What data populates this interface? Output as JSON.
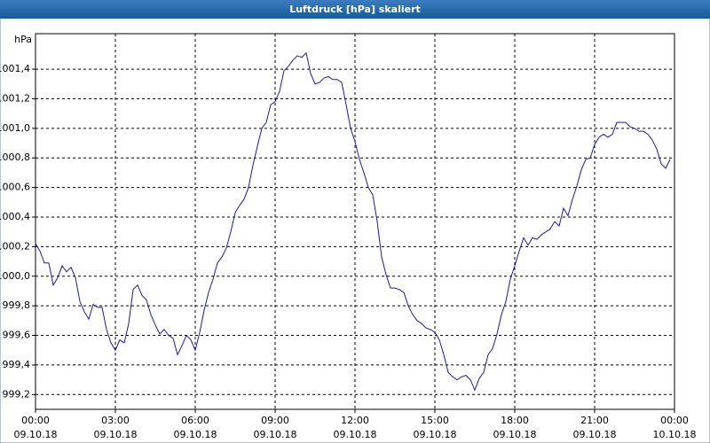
{
  "chart_data": {
    "type": "line",
    "title": "Luftdruck [hPa] skaliert",
    "y_label": "hPa",
    "x": [
      0,
      10,
      20,
      30,
      40,
      50,
      60,
      70,
      80,
      90,
      100,
      110,
      120,
      130,
      140,
      150,
      160,
      170,
      180,
      190,
      200,
      210,
      220,
      230,
      240,
      250,
      260,
      270,
      280,
      290,
      300,
      310,
      320,
      330,
      340,
      350,
      360,
      370,
      380,
      390,
      400,
      410,
      420,
      430,
      440,
      450,
      460,
      470,
      480,
      490,
      500,
      510,
      520,
      530,
      540,
      550,
      560,
      570,
      580,
      590,
      600,
      610,
      620,
      630,
      640,
      650,
      660,
      670,
      680,
      690,
      700,
      710,
      720,
      730,
      740,
      750,
      760,
      770,
      780,
      790,
      800,
      810,
      820,
      830,
      840,
      850,
      860,
      870,
      880,
      890,
      900,
      910,
      920,
      930,
      940,
      950,
      960,
      970,
      980,
      990,
      1000,
      1010,
      1020,
      1030,
      1040,
      1050,
      1060,
      1070,
      1080,
      1090,
      1100,
      1110,
      1120,
      1130,
      1140,
      1150,
      1160,
      1170,
      1180,
      1190,
      1200,
      1210,
      1220,
      1230,
      1240,
      1250,
      1260,
      1270,
      1280,
      1290,
      1300,
      1310,
      1320,
      1330,
      1340,
      1350,
      1360,
      1370,
      1380,
      1390,
      1400,
      1410,
      1420,
      1430
    ],
    "series": [
      {
        "name": "Luftdruck",
        "color": "#1a1aa6",
        "values": [
          1000.22,
          1000.17,
          1000.09,
          1000.09,
          999.94,
          999.99,
          1000.07,
          1000.03,
          1000.06,
          999.99,
          999.83,
          999.76,
          999.71,
          999.81,
          999.79,
          999.79,
          999.64,
          999.55,
          999.5,
          999.57,
          999.55,
          999.68,
          999.91,
          999.94,
          999.87,
          999.84,
          999.74,
          999.67,
          999.61,
          999.64,
          999.6,
          999.58,
          999.47,
          999.53,
          999.6,
          999.57,
          999.5,
          999.62,
          999.77,
          999.89,
          999.98,
          1000.09,
          1000.13,
          1000.19,
          1000.3,
          1000.43,
          1000.48,
          1000.52,
          1000.6,
          1000.75,
          1000.88,
          1001.0,
          1001.04,
          1001.16,
          1001.18,
          1001.25,
          1001.39,
          1001.42,
          1001.46,
          1001.49,
          1001.48,
          1001.51,
          1001.37,
          1001.3,
          1001.31,
          1001.34,
          1001.35,
          1001.33,
          1001.33,
          1001.31,
          1001.16,
          1001.0,
          1000.91,
          1000.79,
          1000.7,
          1000.6,
          1000.55,
          1000.37,
          1000.13,
          1000.01,
          999.92,
          999.92,
          999.91,
          999.89,
          999.8,
          999.74,
          999.7,
          999.68,
          999.65,
          999.64,
          999.62,
          999.57,
          999.47,
          999.35,
          999.32,
          999.3,
          999.32,
          999.33,
          999.3,
          999.23,
          999.31,
          999.35,
          999.47,
          999.51,
          999.61,
          999.74,
          999.83,
          999.98,
          1000.07,
          1000.17,
          1000.26,
          1000.21,
          1000.26,
          1000.25,
          1000.28,
          1000.3,
          1000.32,
          1000.37,
          1000.34,
          1000.46,
          1000.41,
          1000.52,
          1000.61,
          1000.72,
          1000.79,
          1000.8,
          1000.89,
          1000.94,
          1000.96,
          1000.94,
          1000.96,
          1001.04,
          1001.04,
          1001.04,
          1001.01,
          1001.0,
          1000.98,
          1000.98,
          1000.96,
          1000.92,
          1000.86,
          1000.76,
          1000.73,
          1000.79
        ]
      }
    ],
    "xlim": [
      0,
      1440
    ],
    "xticks": [
      {
        "value": 0,
        "label": "00:00",
        "date": "09.10.18"
      },
      {
        "value": 180,
        "label": "03:00",
        "date": "09.10.18"
      },
      {
        "value": 360,
        "label": "06:00",
        "date": "09.10.18"
      },
      {
        "value": 540,
        "label": "09:00",
        "date": "09.10.18"
      },
      {
        "value": 720,
        "label": "12:00",
        "date": "09.10.18"
      },
      {
        "value": 900,
        "label": "15:00",
        "date": "09.10.18"
      },
      {
        "value": 1080,
        "label": "18:00",
        "date": "09.10.18"
      },
      {
        "value": 1260,
        "label": "21:00",
        "date": "09.10.18"
      },
      {
        "value": 1440,
        "label": "00:00",
        "date": "10.10.18"
      }
    ],
    "ylim": [
      999.1,
      1001.64
    ],
    "yticks": [
      {
        "value": 999.2,
        "label": "999,2"
      },
      {
        "value": 999.4,
        "label": "999,4"
      },
      {
        "value": 999.6,
        "label": "999,6"
      },
      {
        "value": 999.8,
        "label": "999,8"
      },
      {
        "value": 1000.0,
        "label": "1000,0"
      },
      {
        "value": 1000.2,
        "label": "1000,2"
      },
      {
        "value": 1000.4,
        "label": "1000,4"
      },
      {
        "value": 1000.6,
        "label": "1000,6"
      },
      {
        "value": 1000.8,
        "label": "1000,8"
      },
      {
        "value": 1001.0,
        "label": "1001,0"
      },
      {
        "value": 1001.2,
        "label": "1001,2"
      },
      {
        "value": 1001.4,
        "label": "1001,4"
      }
    ],
    "grid": true
  }
}
